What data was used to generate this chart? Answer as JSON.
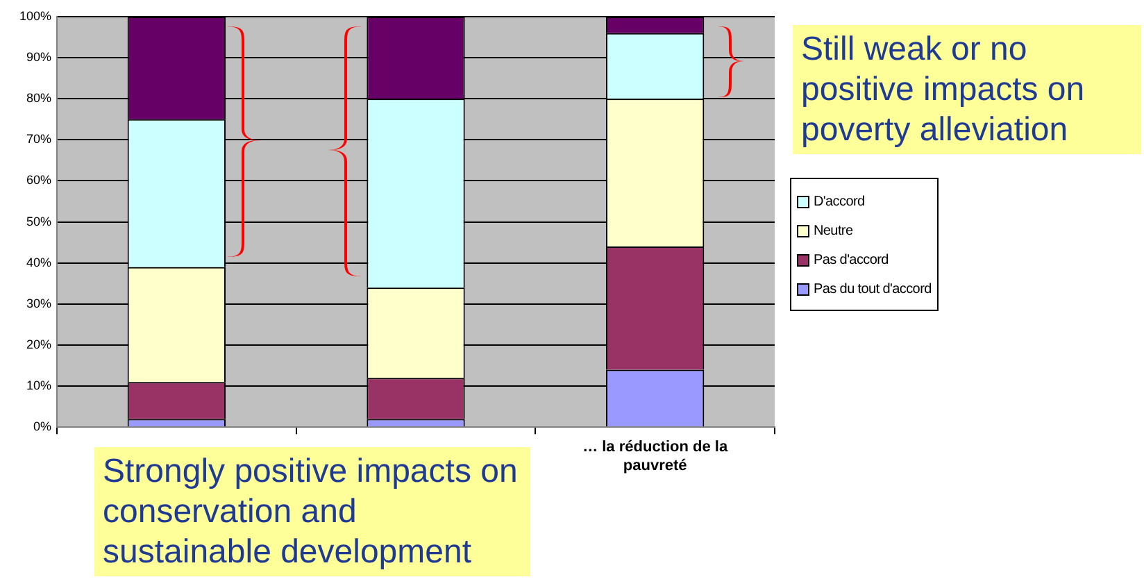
{
  "chart_data": {
    "type": "bar",
    "stacked": true,
    "categories": [
      null,
      null,
      "… la réduction de la pauvreté"
    ],
    "series": [
      {
        "name": "Pas du tout d'accord",
        "color": "#9999ff",
        "values": [
          2,
          2,
          14
        ]
      },
      {
        "name": "Pas d'accord",
        "color": "#993366",
        "values": [
          9,
          10,
          30
        ]
      },
      {
        "name": "Neutre",
        "color": "#ffffcc",
        "values": [
          28,
          22,
          36
        ]
      },
      {
        "name": "D'accord",
        "color": "#ccffff",
        "values": [
          36,
          46,
          16
        ]
      },
      {
        "color": "#660066",
        "values": [
          25,
          20,
          4
        ]
      }
    ],
    "ylim": [
      0,
      100
    ],
    "yticks": [
      {
        "value": 0,
        "label": "0%"
      },
      {
        "value": 10,
        "label": "10%"
      },
      {
        "value": 20,
        "label": "20%"
      },
      {
        "value": 30,
        "label": "30%"
      },
      {
        "value": 40,
        "label": "40%"
      },
      {
        "value": 50,
        "label": "50%"
      },
      {
        "value": 60,
        "label": "60%"
      },
      {
        "value": 70,
        "label": "70%"
      },
      {
        "value": 80,
        "label": "80%"
      },
      {
        "value": 90,
        "label": "90%"
      },
      {
        "value": 100,
        "label": "100%"
      }
    ],
    "grid": "y",
    "legend": "right",
    "annotations": [
      "Still weak or no positive impacts on poverty alleviation",
      "Strongly positive impacts on conservation and sustainable development"
    ]
  }
}
